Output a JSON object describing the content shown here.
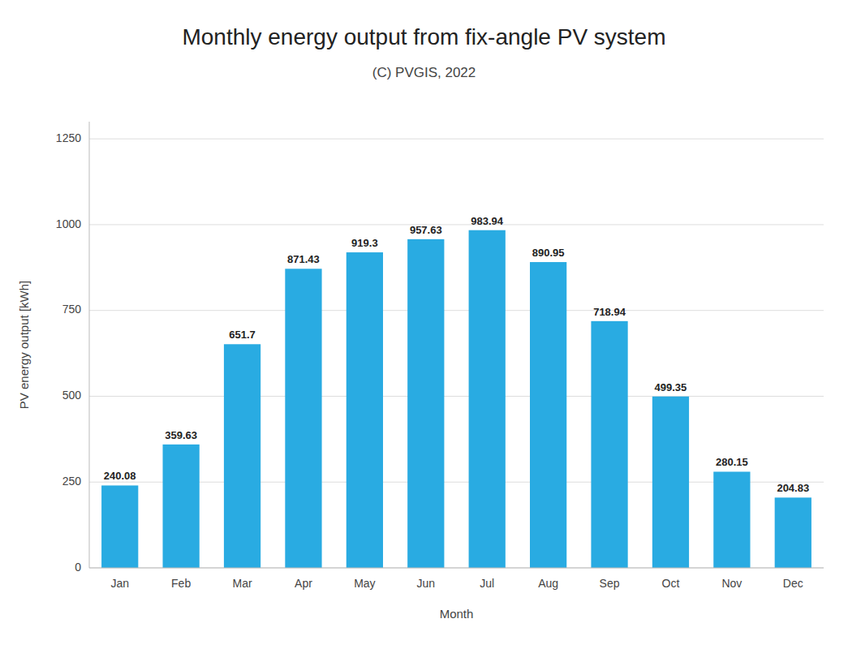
{
  "chart_data": {
    "type": "bar",
    "title": "Monthly energy output from fix-angle PV system",
    "subtitle": "(C) PVGIS, 2022",
    "xlabel": "Month",
    "ylabel": "PV energy output [kWh]",
    "categories": [
      "Jan",
      "Feb",
      "Mar",
      "Apr",
      "May",
      "Jun",
      "Jul",
      "Aug",
      "Sep",
      "Oct",
      "Nov",
      "Dec"
    ],
    "values": [
      240.08,
      359.63,
      651.7,
      871.43,
      919.3,
      957.63,
      983.94,
      890.95,
      718.94,
      499.35,
      280.15,
      204.83
    ],
    "color": "#29ABE2",
    "ylim": [
      0,
      1300
    ],
    "yticks": [
      0,
      250,
      500,
      750,
      1000,
      1250
    ],
    "grid": true,
    "data_labels": true
  }
}
